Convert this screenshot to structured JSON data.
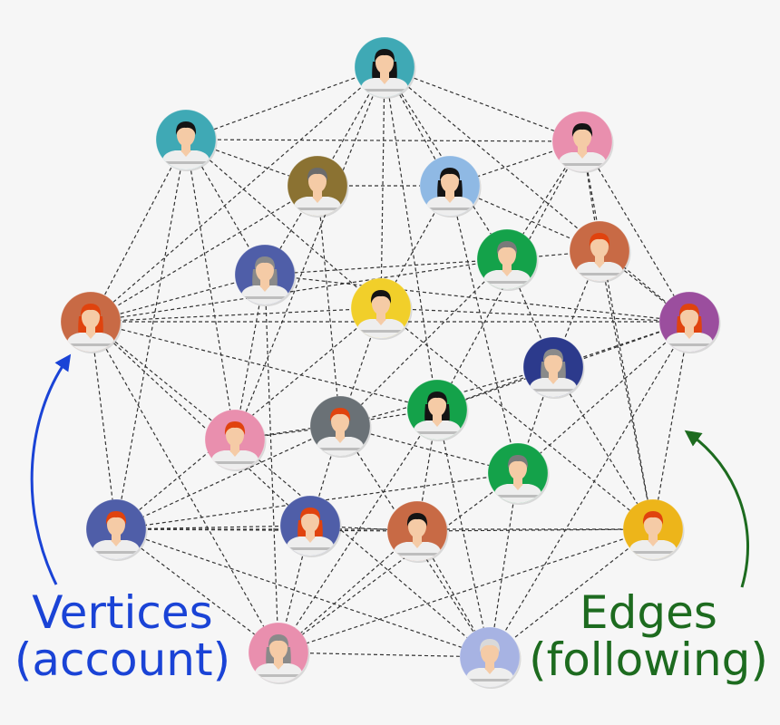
{
  "labels": {
    "vertices_line1": "Vertices",
    "vertices_line2": "(account)",
    "edges_line1": "Edges",
    "edges_line2": "(following)"
  },
  "colors": {
    "vertices_label": "#1a43d6",
    "edges_label": "#1d6b1f",
    "edge_line": "#333333",
    "skin": "#f5cba6",
    "shirt": "#eeeeee"
  },
  "icons": {
    "vertex": "person-avatar-icon"
  },
  "nodes": [
    {
      "id": 0,
      "bg": "#3fa9b5",
      "hair": "#141414",
      "style": "long"
    },
    {
      "id": 1,
      "bg": "#3fa9b5",
      "hair": "#141414",
      "style": "short"
    },
    {
      "id": 2,
      "bg": "#e98fae",
      "hair": "#141414",
      "style": "short"
    },
    {
      "id": 3,
      "bg": "#8b7232",
      "hair": "#6b6b6b",
      "style": "short"
    },
    {
      "id": 4,
      "bg": "#8fb9e4",
      "hair": "#141414",
      "style": "long"
    },
    {
      "id": 5,
      "bg": "#c86a45",
      "hair": "#e0430e",
      "style": "short"
    },
    {
      "id": 6,
      "bg": "#14a24a",
      "hair": "#7a7a7a",
      "style": "short"
    },
    {
      "id": 7,
      "bg": "#4f5ea8",
      "hair": "#8a8a8a",
      "style": "long"
    },
    {
      "id": 8,
      "bg": "#f1cf2a",
      "hair": "#141414",
      "style": "short"
    },
    {
      "id": 9,
      "bg": "#c86a45",
      "hair": "#e0430e",
      "style": "long"
    },
    {
      "id": 10,
      "bg": "#9b4e9e",
      "hair": "#e0430e",
      "style": "long"
    },
    {
      "id": 11,
      "bg": "#2c3a8c",
      "hair": "#8a8a8a",
      "style": "long"
    },
    {
      "id": 12,
      "bg": "#14a24a",
      "hair": "#141414",
      "style": "long"
    },
    {
      "id": 13,
      "bg": "#e98fae",
      "hair": "#e0430e",
      "style": "short"
    },
    {
      "id": 14,
      "bg": "#6a7176",
      "hair": "#e0430e",
      "style": "short"
    },
    {
      "id": 15,
      "bg": "#14a24a",
      "hair": "#7a7a7a",
      "style": "short"
    },
    {
      "id": 16,
      "bg": "#4f5ea8",
      "hair": "#e0430e",
      "style": "short"
    },
    {
      "id": 17,
      "bg": "#4f5ea8",
      "hair": "#e0430e",
      "style": "long"
    },
    {
      "id": 18,
      "bg": "#c86a45",
      "hair": "#141414",
      "style": "short"
    },
    {
      "id": 19,
      "bg": "#edb51a",
      "hair": "#e0430e",
      "style": "short"
    },
    {
      "id": 20,
      "bg": "#e98fae",
      "hair": "#8a8a8a",
      "style": "long"
    },
    {
      "id": 21,
      "bg": "#a7b3e3",
      "hair": "#d9d9d9",
      "style": "short"
    }
  ],
  "edges": [
    [
      0,
      1
    ],
    [
      0,
      2
    ],
    [
      0,
      4
    ],
    [
      0,
      9
    ],
    [
      0,
      10
    ],
    [
      0,
      3
    ],
    [
      0,
      8
    ],
    [
      0,
      6
    ],
    [
      0,
      12
    ],
    [
      0,
      13
    ],
    [
      1,
      2
    ],
    [
      1,
      9
    ],
    [
      1,
      3
    ],
    [
      1,
      7
    ],
    [
      1,
      8
    ],
    [
      1,
      16
    ],
    [
      1,
      13
    ],
    [
      2,
      10
    ],
    [
      2,
      5
    ],
    [
      2,
      6
    ],
    [
      2,
      4
    ],
    [
      2,
      12
    ],
    [
      2,
      19
    ],
    [
      3,
      4
    ],
    [
      3,
      7
    ],
    [
      3,
      9
    ],
    [
      3,
      14
    ],
    [
      4,
      5
    ],
    [
      4,
      15
    ],
    [
      4,
      8
    ],
    [
      5,
      6
    ],
    [
      5,
      10
    ],
    [
      5,
      19
    ],
    [
      5,
      11
    ],
    [
      6,
      7
    ],
    [
      6,
      9
    ],
    [
      6,
      14
    ],
    [
      6,
      11
    ],
    [
      7,
      9
    ],
    [
      7,
      10
    ],
    [
      7,
      20
    ],
    [
      7,
      13
    ],
    [
      8,
      9
    ],
    [
      8,
      10
    ],
    [
      8,
      14
    ],
    [
      8,
      19
    ],
    [
      8,
      16
    ],
    [
      9,
      10
    ],
    [
      9,
      16
    ],
    [
      9,
      17
    ],
    [
      9,
      20
    ],
    [
      9,
      13
    ],
    [
      9,
      12
    ],
    [
      10,
      11
    ],
    [
      10,
      19
    ],
    [
      10,
      21
    ],
    [
      10,
      15
    ],
    [
      10,
      12
    ],
    [
      11,
      12
    ],
    [
      11,
      14
    ],
    [
      11,
      15
    ],
    [
      11,
      19
    ],
    [
      12,
      13
    ],
    [
      12,
      18
    ],
    [
      12,
      20
    ],
    [
      12,
      21
    ],
    [
      13,
      14
    ],
    [
      13,
      21
    ],
    [
      14,
      15
    ],
    [
      14,
      16
    ],
    [
      14,
      17
    ],
    [
      14,
      21
    ],
    [
      15,
      16
    ],
    [
      15,
      20
    ],
    [
      15,
      21
    ],
    [
      16,
      17
    ],
    [
      16,
      19
    ],
    [
      16,
      20
    ],
    [
      16,
      21
    ],
    [
      16,
      18
    ],
    [
      17,
      18
    ],
    [
      17,
      20
    ],
    [
      18,
      19
    ],
    [
      18,
      20
    ],
    [
      18,
      21
    ],
    [
      19,
      20
    ],
    [
      19,
      21
    ],
    [
      20,
      21
    ]
  ]
}
